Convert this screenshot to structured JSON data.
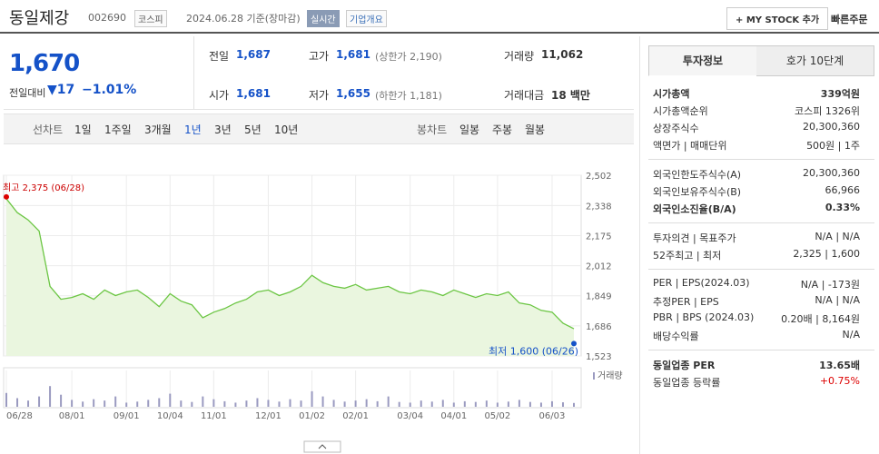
{
  "header": {
    "name": "동일제강",
    "code": "002690",
    "market": "코스피",
    "date": "2024.06.28 기준(장마감)",
    "realtime": "실시간",
    "overview": "기업개요",
    "mystock": "+ MY STOCK 추가",
    "quick_order": "빠른주문"
  },
  "quote": {
    "price": "1,670",
    "change_label": "전일대비",
    "change": "▼17",
    "change_rate": "−1.01%",
    "stats": [
      {
        "label": "전일",
        "value": "1,687"
      },
      {
        "label": "고가",
        "value": "1,681",
        "note": "(상한가 2,190)"
      },
      {
        "label": "거래량",
        "value": "11,062"
      },
      {
        "label": "시가",
        "value": "1,681"
      },
      {
        "label": "저가",
        "value": "1,655",
        "note": "(하한가 1,181)"
      },
      {
        "label": "거래대금",
        "value": "18 백만"
      }
    ]
  },
  "tabs": {
    "line_label": "선차트",
    "line": [
      "1일",
      "1주일",
      "3개월",
      "1년",
      "3년",
      "5년",
      "10년"
    ],
    "candle_label": "봉차트",
    "candle": [
      "일봉",
      "주봉",
      "월봉"
    ]
  },
  "chart_data": {
    "type": "line",
    "categories": [
      "06/28",
      null,
      null,
      null,
      null,
      null,
      "08/01",
      null,
      null,
      null,
      null,
      "09/01",
      null,
      null,
      null,
      "10/04",
      null,
      null,
      null,
      "11/01",
      null,
      null,
      null,
      null,
      "12/01",
      null,
      null,
      null,
      "01/02",
      null,
      null,
      null,
      "02/01",
      null,
      null,
      null,
      null,
      "03/04",
      null,
      null,
      null,
      "04/01",
      null,
      null,
      null,
      "05/02",
      null,
      null,
      null,
      null,
      "06/03",
      null,
      null
    ],
    "values": [
      2375,
      2300,
      2260,
      2200,
      1900,
      1830,
      1840,
      1860,
      1830,
      1880,
      1850,
      1870,
      1880,
      1840,
      1790,
      1860,
      1820,
      1800,
      1730,
      1760,
      1780,
      1810,
      1830,
      1870,
      1880,
      1850,
      1870,
      1900,
      1960,
      1920,
      1900,
      1890,
      1910,
      1880,
      1890,
      1900,
      1870,
      1860,
      1880,
      1870,
      1850,
      1880,
      1860,
      1840,
      1860,
      1850,
      1870,
      1810,
      1800,
      1770,
      1760,
      1700,
      1670
    ],
    "color": "#6cc644",
    "ylim": [
      1523,
      2502
    ],
    "yticks": [
      {
        "value": 2502,
        "label": "2,502"
      },
      {
        "value": 2338,
        "label": "2,338"
      },
      {
        "value": 2175,
        "label": "2,175"
      },
      {
        "value": 2012,
        "label": "2,012"
      },
      {
        "value": 1849,
        "label": "1,849"
      },
      {
        "value": 1686,
        "label": "1,686"
      },
      {
        "value": 1523,
        "label": "1,523"
      }
    ],
    "grid": true,
    "high": {
      "label": "최고 2,375 (06/28)",
      "value": 2375
    },
    "low": {
      "label": "최저 1,600 (06/26)",
      "value": 1600
    },
    "volume": {
      "label": "거래량",
      "color": "#9a9ac0",
      "ylim": [
        0,
        100000
      ],
      "values": [
        40000,
        25000,
        18000,
        30000,
        60000,
        35000,
        20000,
        15000,
        22000,
        18000,
        30000,
        12000,
        15000,
        20000,
        25000,
        38000,
        18000,
        14000,
        30000,
        22000,
        16000,
        12000,
        18000,
        25000,
        20000,
        15000,
        22000,
        18000,
        45000,
        30000,
        20000,
        15000,
        18000,
        22000,
        16000,
        30000,
        14000,
        12000,
        18000,
        15000,
        20000,
        12000,
        16000,
        14000,
        18000,
        12000,
        15000,
        20000,
        14000,
        12000,
        16000,
        13000,
        11062
      ]
    }
  },
  "side": {
    "tabs": [
      "투자정보",
      "호가 10단계"
    ],
    "groups": [
      [
        {
          "label": "시가총액",
          "value": "339억원"
        },
        {
          "label": "시가총액순위",
          "value": "코스피 1326위"
        },
        {
          "label": "상장주식수",
          "value": "20,300,360"
        },
        {
          "label": "액면가 | 매매단위",
          "value": "500원 | 1주"
        }
      ],
      [
        {
          "label": "외국인한도주식수(A)",
          "value": "20,300,360"
        },
        {
          "label": "외국인보유주식수(B)",
          "value": "66,966"
        },
        {
          "label": "외국인소진율(B/A)",
          "value": "0.33%"
        }
      ],
      [
        {
          "label": "투자의견 | 목표주가",
          "value": "N/A | N/A"
        },
        {
          "label": "52주최고 | 최저",
          "value": "2,325 | 1,600"
        }
      ],
      [
        {
          "label": "PER | EPS(2024.03)",
          "value": "N/A | -173원"
        },
        {
          "label": "추정PER | EPS",
          "value": "N/A | N/A"
        },
        {
          "label": "PBR | BPS (2024.03)",
          "value": "0.20배 | 8,164원"
        },
        {
          "label": "배당수익률",
          "value": "N/A"
        }
      ],
      [
        {
          "label": "동일업종 PER",
          "value": "13.65배"
        },
        {
          "label": "동일업종 등락률",
          "value": "+0.75%"
        }
      ]
    ]
  }
}
